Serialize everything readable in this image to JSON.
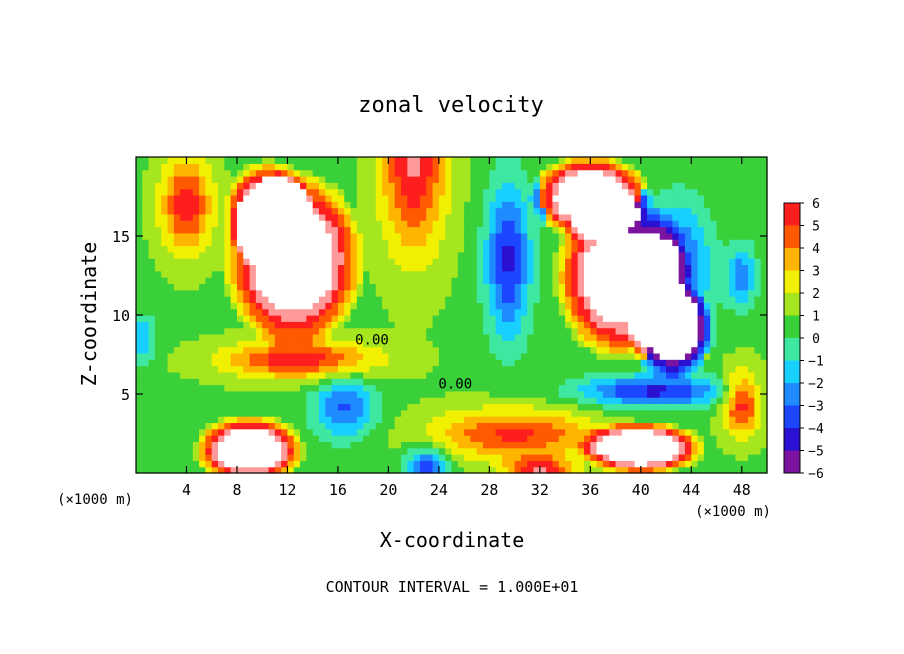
{
  "chart_data": {
    "type": "heatmap",
    "title": "zonal velocity",
    "xlabel": "X-coordinate",
    "ylabel": "Z-coordinate",
    "x_unit_label": "(×1000 m)",
    "x_unit_label_right": "(×1000 m)",
    "xlim": [
      0,
      50
    ],
    "ylim": [
      0,
      20
    ],
    "x_ticks": [
      4,
      8,
      12,
      16,
      20,
      24,
      28,
      32,
      36,
      40,
      44,
      48
    ],
    "y_ticks": [
      5,
      10,
      15
    ],
    "colorbar": {
      "min": -6,
      "max": 6,
      "ticks": [
        6,
        5,
        4,
        3,
        2,
        1,
        0,
        -1,
        -2,
        -3,
        -4,
        -5,
        -6
      ],
      "colors": [
        {
          "value": -6,
          "color": "#7a14a0"
        },
        {
          "value": -5,
          "color": "#2a10d0"
        },
        {
          "value": -4,
          "color": "#1c46ff"
        },
        {
          "value": -3,
          "color": "#1e8cff"
        },
        {
          "value": -2,
          "color": "#18d0ff"
        },
        {
          "value": -1,
          "color": "#3ee8a0"
        },
        {
          "value": 0,
          "color": "#3ad03a"
        },
        {
          "value": 1,
          "color": "#a6e61e"
        },
        {
          "value": 2,
          "color": "#f0f000"
        },
        {
          "value": 3,
          "color": "#ffb400"
        },
        {
          "value": 4,
          "color": "#ff5a00"
        },
        {
          "value": 5,
          "color": "#ff1e1e"
        },
        {
          "value": 6,
          "color": "#ff9a9a"
        }
      ],
      "out_of_range_color": "#ffffff"
    },
    "contour_labels": [
      {
        "text": "0.00",
        "x": 18.7,
        "z": 8.4
      },
      {
        "text": "0.00",
        "x": 25.3,
        "z": 5.6
      }
    ],
    "features": [
      {
        "kind": "core",
        "x": 22,
        "z": 20,
        "value": 5.5,
        "sx": 2.6,
        "sz": 6
      },
      {
        "kind": "core",
        "x": 4,
        "z": 17,
        "value": 5.0,
        "sx": 2.0,
        "sz": 3
      },
      {
        "kind": "core",
        "x": 13,
        "z": 7.2,
        "value": 5.0,
        "sx": 6.0,
        "sz": 1.2
      },
      {
        "kind": "core",
        "x": 30,
        "z": 2.5,
        "value": 4.5,
        "sx": 6.5,
        "sz": 1.6
      },
      {
        "kind": "core",
        "x": 48,
        "z": 4.5,
        "value": 5.0,
        "sx": 1.5,
        "sz": 2.0
      },
      {
        "kind": "core",
        "x": 32,
        "z": 0.2,
        "value": 5.0,
        "sx": 2.5,
        "sz": 0.8
      },
      {
        "kind": "core",
        "x": 16.5,
        "z": 4.2,
        "value": -4.0,
        "sx": 2.5,
        "sz": 2.0
      },
      {
        "kind": "core",
        "x": 23,
        "z": 0.4,
        "value": -5.0,
        "sx": 1.6,
        "sz": 1.2
      },
      {
        "kind": "core",
        "x": 29.5,
        "z": 13.5,
        "value": -5.0,
        "sx": 1.8,
        "sz": 5.0
      },
      {
        "kind": "core",
        "x": 43,
        "z": 13,
        "value": -4.5,
        "sx": 2.5,
        "sz": 4.0
      },
      {
        "kind": "core",
        "x": 41,
        "z": 5.2,
        "value": -5.0,
        "sx": 6.0,
        "sz": 1.0
      },
      {
        "kind": "core",
        "x": 0.5,
        "z": 8.5,
        "value": -3.0,
        "sx": 1.0,
        "sz": 1.5
      },
      {
        "kind": "core",
        "x": 48,
        "z": 12.5,
        "value": -3.5,
        "sx": 1.2,
        "sz": 2.0
      }
    ],
    "blank_regions": [
      {
        "x": 12.5,
        "z": 13.5,
        "rx": 5.8,
        "rz": 5.8
      },
      {
        "x": 10.5,
        "z": 16.5,
        "rx": 3.6,
        "rz": 3.4
      },
      {
        "x": 38.5,
        "z": 12.5,
        "rx": 5.5,
        "rz": 5.5
      },
      {
        "x": 36,
        "z": 17.5,
        "rx": 5.0,
        "rz": 2.8
      },
      {
        "x": 42.5,
        "z": 9.0,
        "rx": 3.5,
        "rz": 3.2
      },
      {
        "x": 9.0,
        "z": 1.5,
        "rx": 4.5,
        "rz": 2.3
      },
      {
        "x": 40.0,
        "z": 1.6,
        "rx": 5.2,
        "rz": 1.8
      }
    ],
    "footer": "CONTOUR INTERVAL = 1.000E+01"
  }
}
